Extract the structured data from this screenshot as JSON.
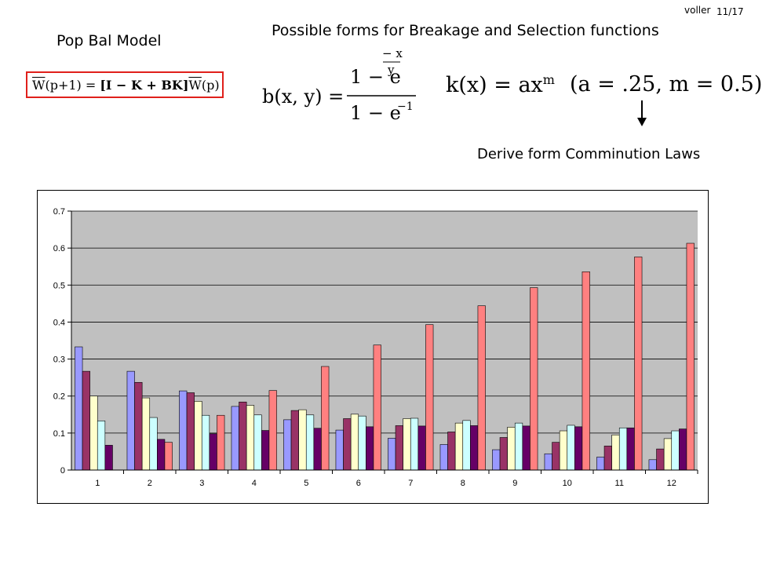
{
  "header": {
    "author": "voller",
    "page": "11/17",
    "title": "Possible forms for Breakage and Selection functions",
    "model_label": "Pop Bal Model",
    "note": "Derive form Comminution Laws"
  },
  "equations": {
    "model": {
      "lhs_w": "W",
      "lhs_arg": "(p+1)",
      "eq": " = ",
      "bracket": "[I − K + BK]",
      "rhs_w": "W",
      "rhs_arg": "(p)"
    },
    "breakage": {
      "lhs": "b(x, y) =",
      "num": "1 − e",
      "exp_top": "− x",
      "exp_bottom": "y",
      "den": "1 − e",
      "den_exp": "−1"
    },
    "selection": "k(x) = ax",
    "selection_exp": "m",
    "params": "(a = .25,  m = 0.5)"
  },
  "chart_data": {
    "type": "bar",
    "categories": [
      "1",
      "2",
      "3",
      "4",
      "5",
      "6",
      "7",
      "8",
      "9",
      "10",
      "11",
      "12"
    ],
    "ylim": [
      0,
      0.7
    ],
    "yticks": [
      "0",
      "0.1",
      "0.2",
      "0.3",
      "0.4",
      "0.5",
      "0.6",
      "0.7"
    ],
    "grid": true,
    "plot_background": "#c0c0c0",
    "series": [
      {
        "color": "#9999ff",
        "values": [
          0.333,
          0.267,
          0.214,
          0.172,
          0.136,
          0.108,
          0.086,
          0.069,
          0.055,
          0.044,
          0.035,
          0.028
        ]
      },
      {
        "color": "#993366",
        "values": [
          0.267,
          0.237,
          0.209,
          0.184,
          0.161,
          0.139,
          0.12,
          0.103,
          0.088,
          0.075,
          0.065,
          0.057
        ]
      },
      {
        "color": "#ffffcc",
        "values": [
          0.2,
          0.195,
          0.186,
          0.175,
          0.163,
          0.151,
          0.139,
          0.127,
          0.116,
          0.106,
          0.095,
          0.085
        ]
      },
      {
        "color": "#ccffff",
        "values": [
          0.133,
          0.142,
          0.148,
          0.149,
          0.149,
          0.146,
          0.14,
          0.134,
          0.127,
          0.121,
          0.114,
          0.106
        ]
      },
      {
        "color": "#660066",
        "values": [
          0.067,
          0.083,
          0.098,
          0.107,
          0.113,
          0.117,
          0.119,
          0.12,
          0.119,
          0.117,
          0.114,
          0.111
        ]
      },
      {
        "color": "#ff8080",
        "values": [
          0,
          0.075,
          0.148,
          0.215,
          0.28,
          0.338,
          0.393,
          0.444,
          0.493,
          0.536,
          0.576,
          0.613
        ]
      }
    ]
  }
}
